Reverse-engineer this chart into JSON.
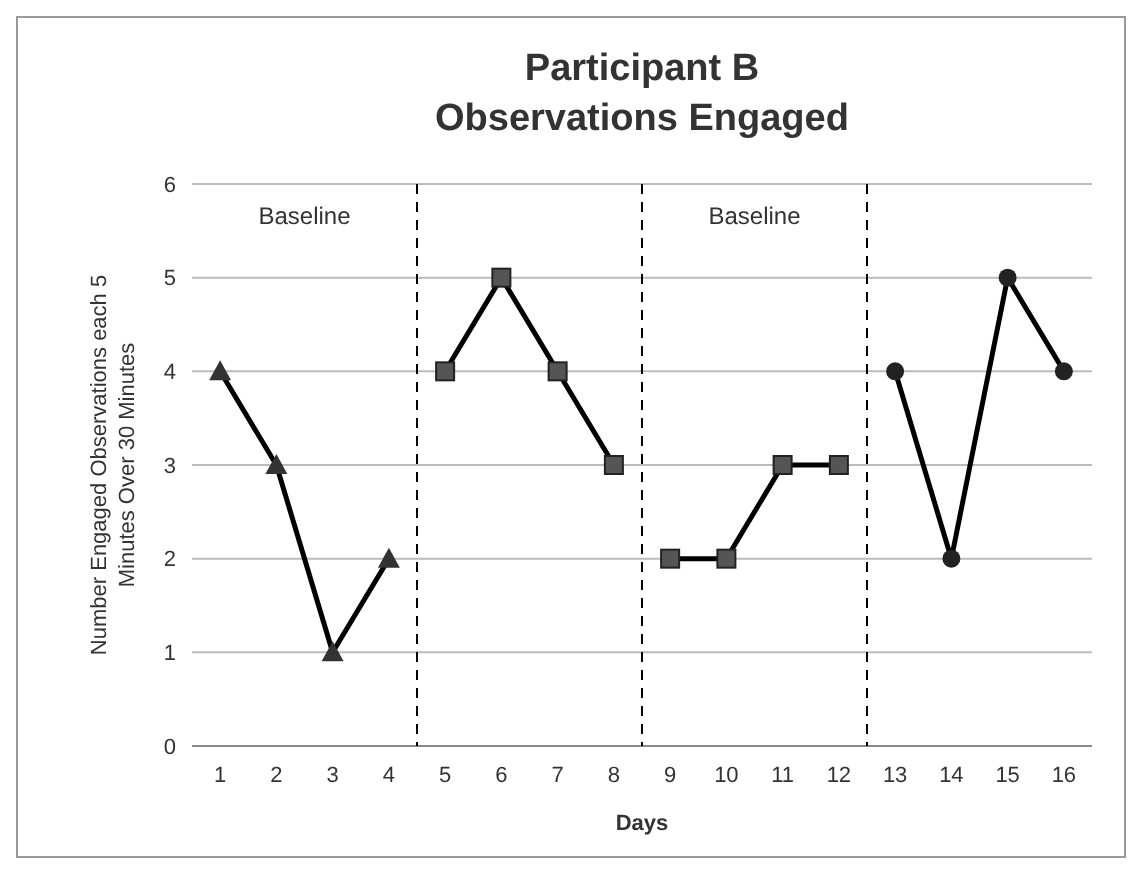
{
  "chart_data": {
    "type": "line",
    "title": "Participant B",
    "subtitle": "Observations Engaged",
    "xlabel": "Days",
    "ylabel": "Number Engaged Observations each 5 Minutes Over 30 Minutes",
    "xlim": [
      0.5,
      16.5
    ],
    "xticks": [
      1,
      2,
      3,
      4,
      5,
      6,
      7,
      8,
      9,
      10,
      11,
      12,
      13,
      14,
      15,
      16
    ],
    "ylim": [
      0,
      6
    ],
    "yticks": [
      0,
      1,
      2,
      3,
      4,
      5,
      6
    ],
    "grid": "y",
    "line_style": "solid",
    "series": [
      {
        "x": [
          1,
          2,
          3,
          4
        ],
        "values": [
          4,
          3,
          1,
          2
        ],
        "color": "#000000",
        "marker": "triangle"
      },
      {
        "x": [
          5,
          6,
          7,
          8
        ],
        "values": [
          4,
          5,
          4,
          3
        ],
        "color": "#000000",
        "marker": "square"
      },
      {
        "x": [
          9,
          10,
          11,
          12
        ],
        "values": [
          2,
          2,
          3,
          3
        ],
        "color": "#000000",
        "marker": "square"
      },
      {
        "x": [
          13,
          14,
          15,
          16
        ],
        "values": [
          4,
          2,
          5,
          4
        ],
        "color": "#000000",
        "marker": "circle"
      }
    ],
    "ref_lines": [
      {
        "axis": "x",
        "value": 4.5,
        "line_style": "dashed",
        "color": "#000000"
      },
      {
        "axis": "x",
        "value": 8.5,
        "line_style": "dashed",
        "color": "#000000"
      },
      {
        "axis": "x",
        "value": 12.5,
        "line_style": "dashed",
        "color": "#000000"
      }
    ],
    "annotations": [
      "Baseline",
      "Baseline"
    ]
  }
}
